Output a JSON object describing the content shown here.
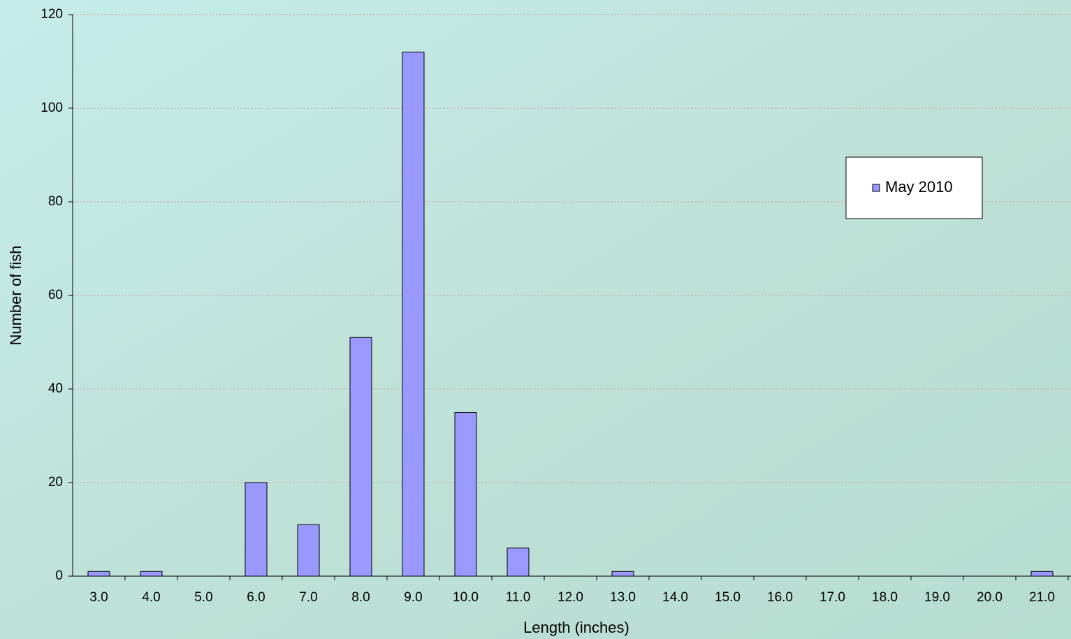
{
  "chart_data": {
    "type": "bar",
    "x_label": "Length (inches)",
    "y_label": "Number of fish",
    "categories": [
      "3.0",
      "4.0",
      "5.0",
      "6.0",
      "7.0",
      "8.0",
      "9.0",
      "10.0",
      "11.0",
      "12.0",
      "13.0",
      "14.0",
      "15.0",
      "16.0",
      "17.0",
      "18.0",
      "19.0",
      "20.0",
      "21.0"
    ],
    "series": [
      {
        "name": "May 2010",
        "color": "#9999ff",
        "values": [
          1,
          1,
          0,
          20,
          11,
          51,
          112,
          35,
          6,
          0,
          1,
          0,
          0,
          0,
          0,
          0,
          0,
          0,
          1
        ]
      }
    ],
    "ylim": [
      0,
      120
    ],
    "yticks": [
      0,
      20,
      40,
      60,
      80,
      100,
      120
    ],
    "grid": true,
    "legend": "upper right"
  }
}
